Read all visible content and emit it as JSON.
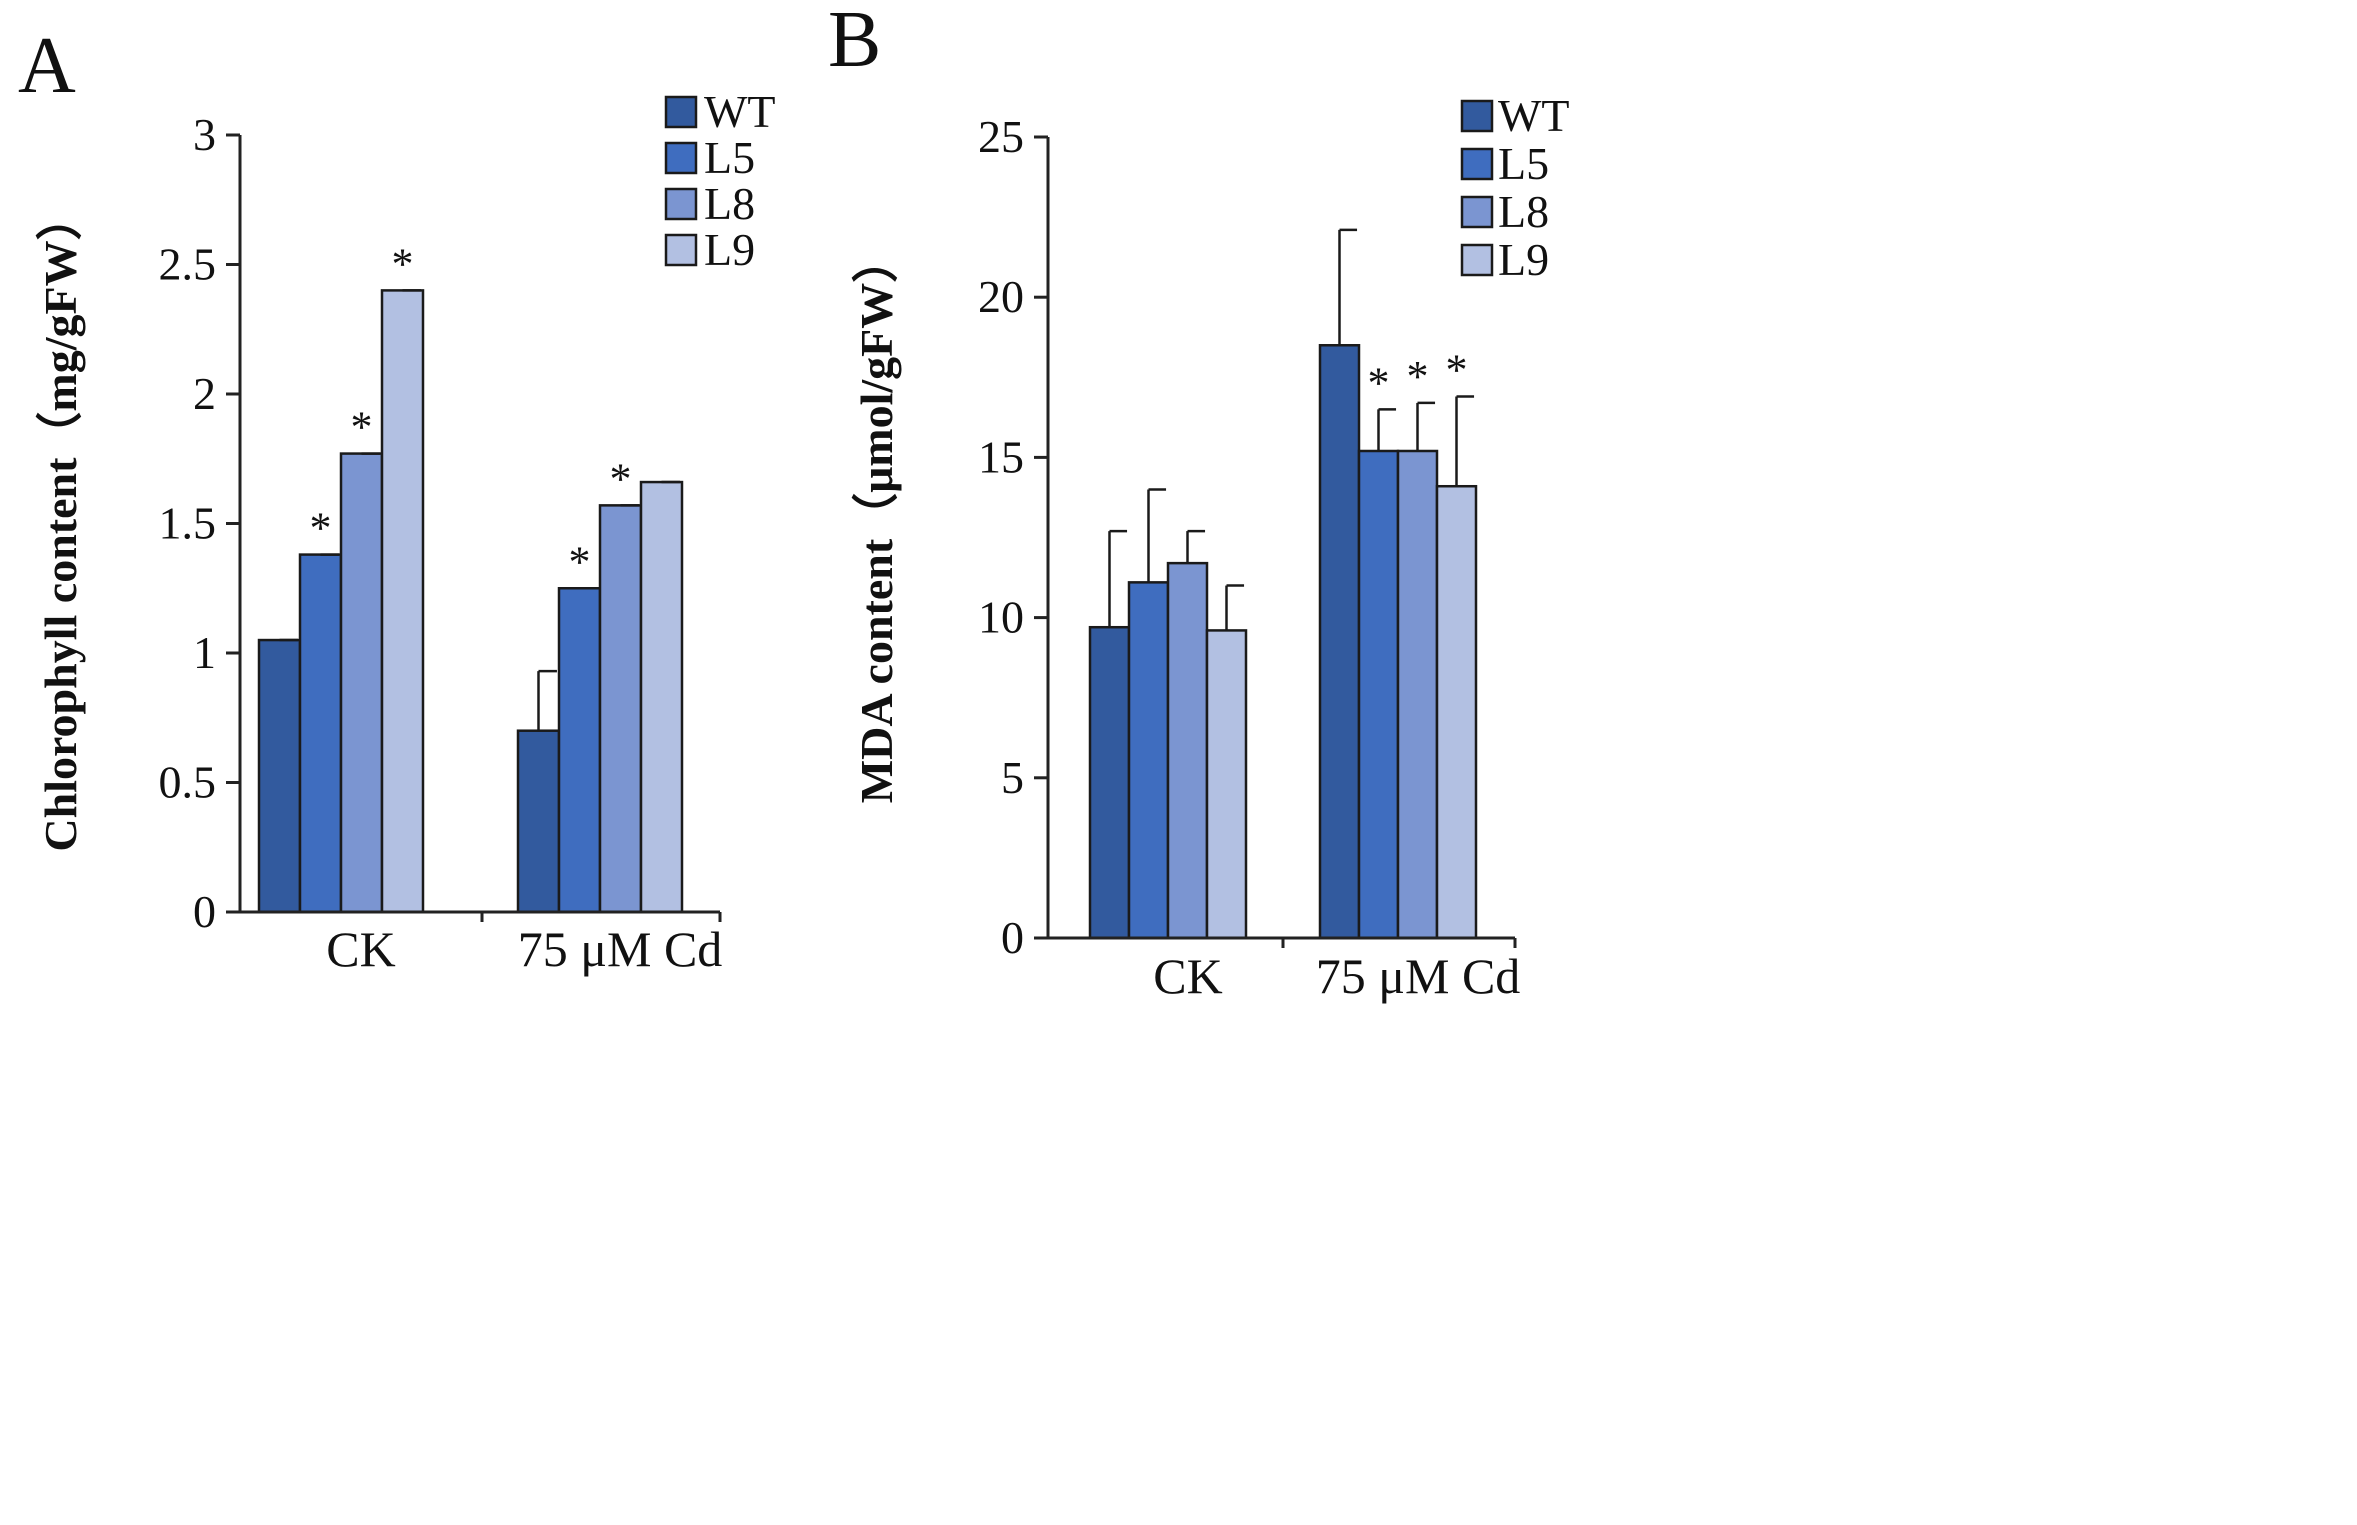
{
  "figure": {
    "panels": [
      "A",
      "B"
    ]
  },
  "chart_data": [
    {
      "type": "bar",
      "panel": "A",
      "title": "",
      "xlabel": "",
      "ylabel": "Chlorophyll content（mg/gFW）",
      "ylim": [
        0,
        3
      ],
      "yticks": [
        "0",
        "0.5",
        "1",
        "1.5",
        "2",
        "2.5",
        "3"
      ],
      "categories": [
        "CK",
        "75 μM Cd"
      ],
      "legend_position": "top-right",
      "series": [
        {
          "name": "WT",
          "color": "#325a9e",
          "values": [
            1.05,
            0.7
          ],
          "errors": [
            0.0,
            0.23
          ],
          "significant": [
            false,
            false
          ]
        },
        {
          "name": "L5",
          "color": "#3f6dbf",
          "values": [
            1.38,
            1.25
          ],
          "errors": [
            0.0,
            0.0
          ],
          "significant": [
            true,
            true
          ]
        },
        {
          "name": "L8",
          "color": "#7b95d1",
          "values": [
            1.77,
            1.57
          ],
          "errors": [
            0.0,
            0.0
          ],
          "significant": [
            true,
            true
          ]
        },
        {
          "name": "L9",
          "color": "#b2c0e2",
          "values": [
            2.4,
            1.66
          ],
          "errors": [
            0.0,
            0.0
          ],
          "significant": [
            true,
            false
          ]
        }
      ]
    },
    {
      "type": "bar",
      "panel": "B",
      "title": "",
      "xlabel": "",
      "ylabel": "MDA content（μmol/gFW）",
      "ylim": [
        0,
        25
      ],
      "yticks": [
        "0",
        "5",
        "10",
        "15",
        "20",
        "25"
      ],
      "categories": [
        "CK",
        "75 μM Cd"
      ],
      "legend_position": "top-right",
      "series": [
        {
          "name": "WT",
          "color": "#325a9e",
          "values": [
            9.7,
            18.5
          ],
          "errors": [
            3.0,
            3.6
          ],
          "significant": [
            false,
            false
          ]
        },
        {
          "name": "L5",
          "color": "#3f6dbf",
          "values": [
            11.1,
            15.2
          ],
          "errors": [
            2.9,
            1.3
          ],
          "significant": [
            false,
            true
          ]
        },
        {
          "name": "L8",
          "color": "#7b95d1",
          "values": [
            11.7,
            15.2
          ],
          "errors": [
            1.0,
            1.5
          ],
          "significant": [
            false,
            true
          ]
        },
        {
          "name": "L9",
          "color": "#b2c0e2",
          "values": [
            9.6,
            14.1
          ],
          "errors": [
            1.4,
            2.8
          ],
          "significant": [
            false,
            true
          ]
        }
      ]
    }
  ]
}
